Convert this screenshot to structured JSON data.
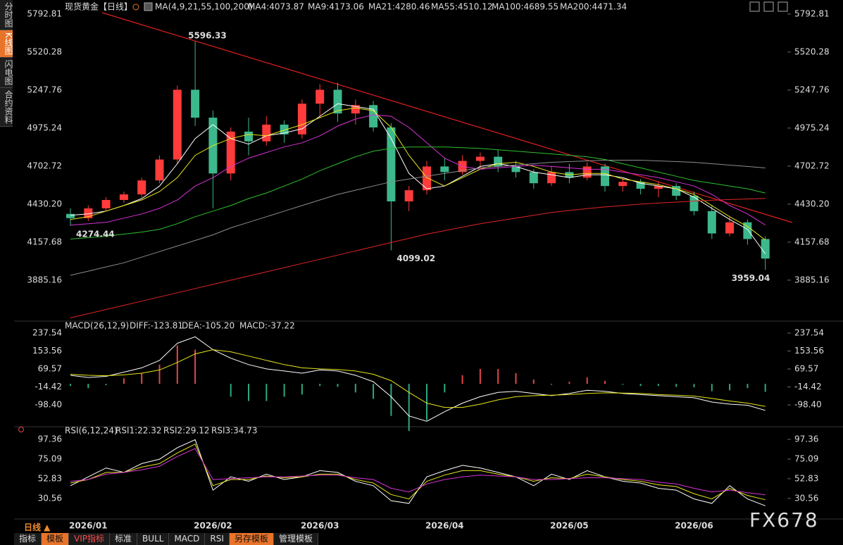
{
  "chart_data": [
    {
      "type": "candlestick",
      "title": "现货黄金",
      "period": "【日线】",
      "indicator": "MA(4,9,21,55,100,200)",
      "categories": [
        null,
        "2026/01",
        null,
        null,
        null,
        null,
        null,
        null,
        "2026/02",
        null,
        null,
        null,
        null,
        null,
        "2026/03",
        null,
        null,
        null,
        null,
        null,
        null,
        "2026/04",
        null,
        null,
        null,
        null,
        null,
        null,
        "2026/05",
        null,
        null,
        null,
        null,
        null,
        null,
        "2026/06",
        null,
        null,
        null,
        null
      ],
      "open": [
        4360,
        4330,
        4400,
        4460,
        4500,
        4600,
        4750,
        5250,
        5050,
        4650,
        4950,
        4880,
        5000,
        4930,
        5150,
        5250,
        5080,
        5140,
        4980,
        4450,
        4530,
        4700,
        4660,
        4740,
        4770,
        4700,
        4660,
        4580,
        4660,
        4620,
        4700,
        4560,
        4590,
        4540,
        4560,
        4490,
        4380,
        4220,
        4300,
        4180
      ],
      "high": [
        4400,
        4420,
        4480,
        4520,
        4620,
        4780,
        5280,
        5596.33,
        5100,
        4980,
        5050,
        5060,
        5030,
        5180,
        5290,
        5300,
        5180,
        5170,
        5010,
        4560,
        4740,
        4760,
        4780,
        4800,
        4820,
        4740,
        4680,
        4700,
        4720,
        4730,
        4720,
        4620,
        4610,
        4590,
        4580,
        4520,
        4420,
        4340,
        4320,
        4200
      ],
      "low": [
        4274.44,
        4310,
        4380,
        4440,
        4480,
        4580,
        4720,
        4990,
        4400,
        4600,
        4780,
        4850,
        4870,
        4900,
        5050,
        5020,
        5000,
        4950,
        4099.02,
        4380,
        4500,
        4600,
        4640,
        4680,
        4660,
        4620,
        4540,
        4560,
        4580,
        4600,
        4520,
        4520,
        4500,
        4480,
        4460,
        4350,
        4180,
        4200,
        4140,
        3959.04
      ],
      "close": [
        4330,
        4400,
        4460,
        4500,
        4600,
        4750,
        5250,
        5050,
        4650,
        4950,
        4880,
        5000,
        4930,
        5150,
        5250,
        5080,
        5140,
        4980,
        4450,
        4530,
        4700,
        4660,
        4740,
        4770,
        4700,
        4660,
        4580,
        4660,
        4620,
        4700,
        4560,
        4590,
        4540,
        4560,
        4490,
        4380,
        4220,
        4300,
        4180,
        4040
      ],
      "up_color": "#ff3b3b",
      "down_color": "#3cb88c",
      "series": [
        {
          "name": "MA4:4073.87",
          "color": "#ffffff",
          "values": [
            4350,
            4360,
            4380,
            4420,
            4470,
            4560,
            4720,
            4900,
            5000,
            4900,
            4860,
            4920,
            4940,
            4970,
            5060,
            5150,
            5130,
            5110,
            4900,
            4650,
            4540,
            4560,
            4630,
            4700,
            4720,
            4700,
            4660,
            4640,
            4620,
            4640,
            4640,
            4620,
            4580,
            4560,
            4540,
            4480,
            4400,
            4320,
            4250,
            4073.87
          ]
        },
        {
          "name": "MA9:4173.06",
          "color": "#e6e619",
          "values": [
            4320,
            4340,
            4380,
            4420,
            4460,
            4520,
            4620,
            4780,
            4850,
            4900,
            4930,
            4920,
            4960,
            5000,
            5050,
            5100,
            5120,
            5100,
            4980,
            4780,
            4620,
            4560,
            4620,
            4680,
            4720,
            4730,
            4700,
            4660,
            4640,
            4650,
            4650,
            4610,
            4590,
            4570,
            4540,
            4500,
            4420,
            4340,
            4270,
            4173.06
          ]
        },
        {
          "name": "MA21:4280.46",
          "color": "#d633d6",
          "values": [
            4280,
            4290,
            4300,
            4330,
            4360,
            4400,
            4460,
            4560,
            4620,
            4700,
            4760,
            4800,
            4840,
            4870,
            4920,
            4990,
            5040,
            5070,
            5060,
            4980,
            4870,
            4760,
            4700,
            4680,
            4690,
            4700,
            4710,
            4700,
            4690,
            4680,
            4680,
            4660,
            4640,
            4620,
            4590,
            4560,
            4500,
            4420,
            4360,
            4280.46
          ]
        },
        {
          "name": "MA55:4510.12",
          "color": "#2ec02e",
          "values": [
            4180,
            4190,
            4200,
            4215,
            4230,
            4250,
            4290,
            4340,
            4380,
            4420,
            4470,
            4510,
            4560,
            4610,
            4670,
            4720,
            4770,
            4810,
            4830,
            4840,
            4840,
            4840,
            4835,
            4830,
            4820,
            4810,
            4800,
            4790,
            4780,
            4770,
            4750,
            4720,
            4690,
            4660,
            4630,
            4600,
            4580,
            4560,
            4540,
            4510.12
          ]
        },
        {
          "name": "MA100:4689.55",
          "color": "#8c8c8c",
          "values": [
            3920,
            3950,
            3980,
            4010,
            4050,
            4090,
            4130,
            4170,
            4210,
            4260,
            4300,
            4340,
            4380,
            4420,
            4460,
            4500,
            4530,
            4560,
            4590,
            4610,
            4630,
            4650,
            4670,
            4690,
            4700,
            4710,
            4720,
            4730,
            4735,
            4740,
            4745,
            4745,
            4745,
            4740,
            4735,
            4730,
            4720,
            4710,
            4700,
            4689.55
          ]
        },
        {
          "name": "MA200:4471.34",
          "color": "#e02424",
          "values": [
            3615,
            3645,
            3675,
            3705,
            3735,
            3765,
            3795,
            3825,
            3855,
            3885,
            3915,
            3945,
            3975,
            4005,
            4035,
            4065,
            4095,
            4125,
            4155,
            4185,
            4215,
            4240,
            4265,
            4290,
            4310,
            4330,
            4350,
            4370,
            4385,
            4398,
            4410,
            4420,
            4430,
            4438,
            4445,
            4452,
            4458,
            4463,
            4467,
            4471.34
          ]
        }
      ],
      "ylim": [
        3597,
        5868
      ],
      "yticks": [
        5792.81,
        5520.28,
        5247.76,
        4975.24,
        4702.72,
        {
          "value": 4430.2,
          "label": "4430.20"
        },
        4157.68,
        3885.16
      ]
    },
    {
      "type": "macd",
      "title": "MACD(26,12,9)",
      "series": [
        {
          "name": "DIFF:-123.81",
          "color": "#ffffff",
          "values": [
            40,
            30,
            35,
            55,
            75,
            110,
            190,
            220,
            160,
            120,
            90,
            70,
            60,
            50,
            65,
            60,
            40,
            10,
            -60,
            -150,
            -175,
            -130,
            -90,
            -60,
            -40,
            -35,
            -45,
            -55,
            -45,
            -30,
            -35,
            -45,
            -50,
            -55,
            -60,
            -65,
            -85,
            -95,
            -100,
            -123.81
          ]
        },
        {
          "name": "DEA:-105.20",
          "color": "#e6e619",
          "values": [
            45,
            40,
            38,
            42,
            50,
            65,
            100,
            140,
            160,
            150,
            130,
            110,
            90,
            75,
            70,
            67,
            60,
            45,
            15,
            -40,
            -90,
            -110,
            -110,
            -95,
            -75,
            -60,
            -55,
            -53,
            -50,
            -45,
            -42,
            -43,
            -45,
            -50,
            -53,
            -57,
            -68,
            -80,
            -90,
            -105.2
          ]
        },
        {
          "name": "MACD:-37.22",
          "color": "#d633d6",
          "style": "bar",
          "up_color": "#e04848",
          "down_color": "#2ea882",
          "values": [
            -10,
            -20,
            -6,
            26,
            50,
            90,
            180,
            160,
            0,
            -60,
            -80,
            -80,
            -60,
            -50,
            -10,
            -14,
            -40,
            -70,
            -150,
            -220,
            -170,
            -40,
            40,
            70,
            70,
            50,
            20,
            -4,
            10,
            30,
            14,
            -4,
            -10,
            -10,
            -14,
            -16,
            -34,
            -30,
            -20,
            -37.22
          ]
        }
      ],
      "ylim": [
        -197,
        287
      ],
      "yticks": [
        237.54,
        153.56,
        69.57,
        -14.42,
        {
          "value": -98.4,
          "label": "-98.40"
        }
      ]
    },
    {
      "type": "line",
      "title": "RSI(6,12,24)",
      "series": [
        {
          "name": "RSI1:22.32",
          "color": "#ffffff",
          "values": [
            45,
            55,
            65,
            60,
            70,
            75,
            88,
            97,
            40,
            55,
            50,
            58,
            52,
            55,
            62,
            60,
            50,
            45,
            28,
            25,
            55,
            62,
            68,
            65,
            60,
            55,
            45,
            58,
            52,
            62,
            55,
            50,
            48,
            42,
            40,
            30,
            25,
            45,
            30,
            22.32
          ]
        },
        {
          "name": "RSI2:29.12",
          "color": "#e6e619",
          "values": [
            48,
            52,
            60,
            60,
            66,
            70,
            82,
            92,
            45,
            52,
            52,
            56,
            54,
            55,
            58,
            58,
            52,
            48,
            35,
            30,
            50,
            57,
            62,
            62,
            58,
            55,
            50,
            54,
            53,
            58,
            55,
            52,
            50,
            46,
            44,
            36,
            30,
            42,
            34,
            29.12
          ]
        },
        {
          "name": "RSI3:34.73",
          "color": "#d633d6",
          "values": [
            50,
            52,
            58,
            60,
            63,
            67,
            78,
            87,
            52,
            53,
            54,
            55,
            55,
            56,
            57,
            57,
            54,
            52,
            42,
            38,
            47,
            52,
            55,
            57,
            56,
            55,
            52,
            52,
            53,
            54,
            54,
            53,
            52,
            49,
            47,
            42,
            38,
            40,
            37,
            34.73
          ]
        }
      ],
      "ylim": [
        9,
        108.5
      ],
      "yticks": [
        97.36,
        75.09,
        52.83,
        30.56
      ]
    }
  ],
  "ui": {
    "sidebar": [
      "分时图",
      "K线图",
      "闪电图",
      "合约资料"
    ],
    "period_button": "日线 ▲",
    "toolbar": [
      "指标",
      "模板",
      "VIP指标",
      "标准",
      "BULL",
      "MACD",
      "RSI",
      "另存模板",
      "管理模板"
    ],
    "watermark": "FX678"
  }
}
